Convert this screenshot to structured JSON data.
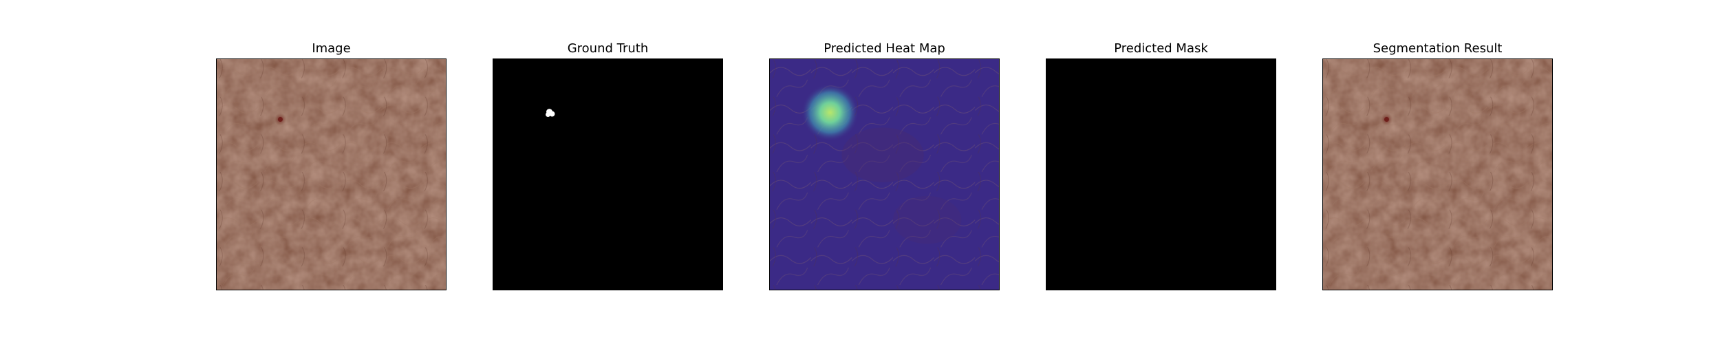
{
  "panels": [
    {
      "title": "Image",
      "content": "leather-texture-with-defect"
    },
    {
      "title": "Ground Truth",
      "content": "binary-mask-with-small-white-blob"
    },
    {
      "title": "Predicted Heat Map",
      "content": "blue-purple-heatmap-with-green-hotspot"
    },
    {
      "title": "Predicted Mask",
      "content": "all-black-mask"
    },
    {
      "title": "Segmentation Result",
      "content": "leather-texture-with-defect"
    }
  ],
  "colors": {
    "leather": "#7e4f3c",
    "defect": "#6e1e1a",
    "mask_background": "#000000",
    "mask_foreground": "#ffffff",
    "heatmap_base": "#3b2a86",
    "heatmap_hot": "#9be08a"
  }
}
